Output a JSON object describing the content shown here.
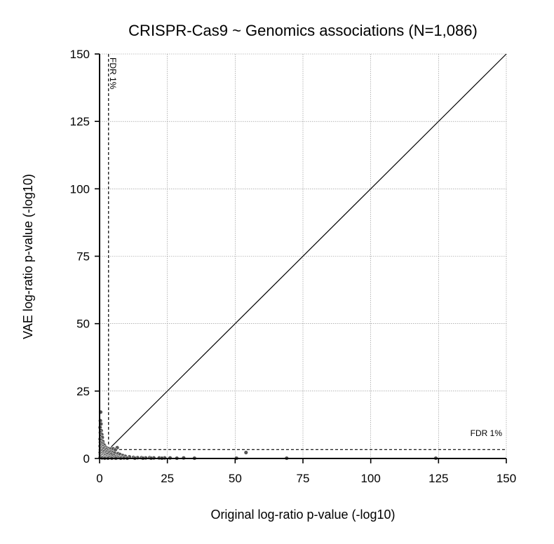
{
  "chart_data": {
    "type": "scatter",
    "title": "CRISPR-Cas9 ~ Genomics associations (N=1,086)",
    "xlabel": "Original log-ratio p-value (-log10)",
    "ylabel": "VAE log-ratio p-value (-log10)",
    "xlim": [
      0,
      150
    ],
    "ylim": [
      0,
      150
    ],
    "xticks": [
      0,
      25,
      50,
      75,
      100,
      125,
      150
    ],
    "yticks": [
      0,
      25,
      50,
      75,
      100,
      125,
      150
    ],
    "grid": true,
    "diagonal": true,
    "fdr_threshold": 3.3,
    "fdr_labels": {
      "vertical": "FDR 1%",
      "horizontal": "FDR 1%"
    },
    "points": [
      [
        0.4,
        17.2
      ],
      [
        0.3,
        14.0
      ],
      [
        0.5,
        12.8
      ],
      [
        0.2,
        11.5
      ],
      [
        0.6,
        10.3
      ],
      [
        0.3,
        9.6
      ],
      [
        0.8,
        8.9
      ],
      [
        0.4,
        8.2
      ],
      [
        1.0,
        7.8
      ],
      [
        0.2,
        7.2
      ],
      [
        0.6,
        6.8
      ],
      [
        1.2,
        6.3
      ],
      [
        0.3,
        6.0
      ],
      [
        0.9,
        5.6
      ],
      [
        1.5,
        5.3
      ],
      [
        0.5,
        5.0
      ],
      [
        1.8,
        4.8
      ],
      [
        0.2,
        4.6
      ],
      [
        1.1,
        4.4
      ],
      [
        2.2,
        4.2
      ],
      [
        0.7,
        4.0
      ],
      [
        1.6,
        3.9
      ],
      [
        2.8,
        3.8
      ],
      [
        0.4,
        3.7
      ],
      [
        3.5,
        3.6
      ],
      [
        1.3,
        3.5
      ],
      [
        2.5,
        3.4
      ],
      [
        4.2,
        3.5
      ],
      [
        5.0,
        3.6
      ],
      [
        6.5,
        4.0
      ],
      [
        5.8,
        3.2
      ],
      [
        0.3,
        3.2
      ],
      [
        1.0,
        3.0
      ],
      [
        2.0,
        2.9
      ],
      [
        3.0,
        2.8
      ],
      [
        4.0,
        2.6
      ],
      [
        0.6,
        2.7
      ],
      [
        1.5,
        2.5
      ],
      [
        2.6,
        2.4
      ],
      [
        3.6,
        2.3
      ],
      [
        4.8,
        2.2
      ],
      [
        0.2,
        2.2
      ],
      [
        1.2,
        2.0
      ],
      [
        2.2,
        1.9
      ],
      [
        3.2,
        1.9
      ],
      [
        5.5,
        2.0
      ],
      [
        6.8,
        1.8
      ],
      [
        0.5,
        1.8
      ],
      [
        1.6,
        1.6
      ],
      [
        2.8,
        1.5
      ],
      [
        4.4,
        1.6
      ],
      [
        7.5,
        1.5
      ],
      [
        0.3,
        1.4
      ],
      [
        1.0,
        1.3
      ],
      [
        2.0,
        1.2
      ],
      [
        3.5,
        1.1
      ],
      [
        5.2,
        1.2
      ],
      [
        8.5,
        1.1
      ],
      [
        0.7,
        1.0
      ],
      [
        1.8,
        0.9
      ],
      [
        3.0,
        0.8
      ],
      [
        4.6,
        0.9
      ],
      [
        6.2,
        0.8
      ],
      [
        9.5,
        0.8
      ],
      [
        0.4,
        0.7
      ],
      [
        1.4,
        0.6
      ],
      [
        2.5,
        0.6
      ],
      [
        4.0,
        0.5
      ],
      [
        5.8,
        0.6
      ],
      [
        7.2,
        0.5
      ],
      [
        11.0,
        0.6
      ],
      [
        0.2,
        0.4
      ],
      [
        1.1,
        0.4
      ],
      [
        2.2,
        0.3
      ],
      [
        3.4,
        0.4
      ],
      [
        5.0,
        0.3
      ],
      [
        6.6,
        0.3
      ],
      [
        8.0,
        0.4
      ],
      [
        12.5,
        0.4
      ],
      [
        14.0,
        0.3
      ],
      [
        15.5,
        0.3
      ],
      [
        17.0,
        0.2
      ],
      [
        18.5,
        0.3
      ],
      [
        20.0,
        0.2
      ],
      [
        22.0,
        0.2
      ],
      [
        24.0,
        0.2
      ],
      [
        26.0,
        0.2
      ],
      [
        28.5,
        0.1
      ],
      [
        31.0,
        0.2
      ],
      [
        35.0,
        0.1
      ],
      [
        0.9,
        0.2
      ],
      [
        1.9,
        0.1
      ],
      [
        3.1,
        0.1
      ],
      [
        4.5,
        0.1
      ],
      [
        6.0,
        0.1
      ],
      [
        7.8,
        0.1
      ],
      [
        9.0,
        0.2
      ],
      [
        10.2,
        0.1
      ],
      [
        13.0,
        0.1
      ],
      [
        16.0,
        0.1
      ],
      [
        19.0,
        0.1
      ],
      [
        23.0,
        0.1
      ],
      [
        54.0,
        2.2
      ],
      [
        69.0,
        0.1
      ],
      [
        124.0,
        0.1
      ],
      [
        50.5,
        0.1
      ]
    ]
  }
}
